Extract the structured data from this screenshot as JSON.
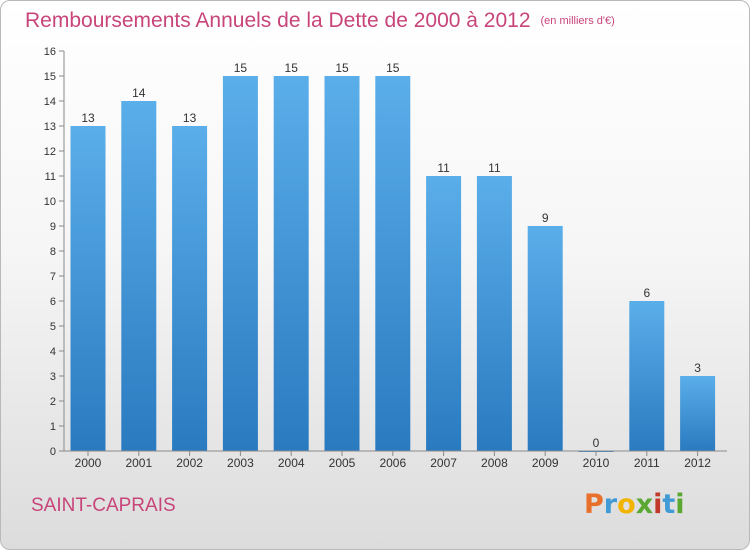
{
  "title": "Remboursements Annuels de la Dette de 2000 à 2012",
  "unit": "(en milliers d'€)",
  "commune": "SAINT-CAPRAIS",
  "logo": {
    "letters": [
      "P",
      "r",
      "o",
      "x",
      "i",
      "t",
      "i"
    ],
    "colors": [
      "#e8702a",
      "#3f9ad6",
      "#f2b400",
      "#5aa832",
      "#c0392b",
      "#3f9ad6",
      "#5aa832"
    ]
  },
  "colors": {
    "bar_top": "#5aaee9",
    "bar_bottom": "#2a7ac0",
    "title": "#c8457a"
  },
  "chart_data": {
    "type": "bar",
    "title": "Remboursements Annuels de la Dette de 2000 à 2012",
    "categories": [
      "2000",
      "2001",
      "2002",
      "2003",
      "2004",
      "2005",
      "2006",
      "2007",
      "2008",
      "2009",
      "2010",
      "2011",
      "2012"
    ],
    "values": [
      13,
      14,
      13,
      15,
      15,
      15,
      15,
      11,
      11,
      9,
      0,
      6,
      3
    ],
    "ylim": [
      0,
      16
    ],
    "yticks": [
      0,
      1,
      2,
      3,
      4,
      5,
      6,
      7,
      8,
      9,
      10,
      11,
      12,
      13,
      14,
      15,
      16
    ],
    "xlabel": "",
    "ylabel": "",
    "grid": false
  }
}
